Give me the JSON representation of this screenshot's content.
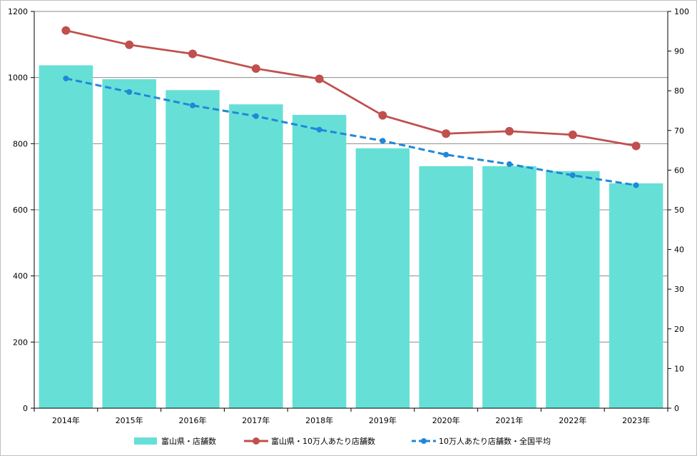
{
  "chart_data": {
    "type": "bar",
    "categories": [
      "2014年",
      "2015年",
      "2016年",
      "2017年",
      "2018年",
      "2019年",
      "2020年",
      "2021年",
      "2022年",
      "2023年"
    ],
    "y_left": {
      "range": [
        0,
        1200
      ],
      "ticks": [
        "0",
        "200",
        "400",
        "600",
        "800",
        "1000",
        "1200"
      ]
    },
    "y_right": {
      "range": [
        0,
        100
      ],
      "ticks": [
        "0",
        "10",
        "20",
        "30",
        "40",
        "50",
        "60",
        "70",
        "80",
        "90",
        "100"
      ]
    },
    "grid": true,
    "legend_position": "bottom",
    "series": [
      {
        "name": "富山県・店舗数",
        "type": "bar",
        "axis": "left",
        "color": "#66E0D6",
        "values": [
          1037,
          995,
          962,
          919,
          887,
          786,
          732,
          732,
          717,
          680
        ]
      },
      {
        "name": "富山県・10万人あたり店舗数",
        "type": "line",
        "axis": "right",
        "color": "#C0504D",
        "marker": "circle",
        "values": [
          95.2,
          91.6,
          89.3,
          85.6,
          83.0,
          73.8,
          69.2,
          69.8,
          68.9,
          66.1
        ]
      },
      {
        "name": "10万人あたり店舗数・全国平均",
        "type": "line",
        "axis": "right",
        "color": "#1F88D8",
        "line_style": "dashed",
        "marker": "circle",
        "values": [
          83.1,
          79.7,
          76.3,
          73.6,
          70.2,
          67.4,
          63.9,
          61.5,
          58.7,
          56.2
        ]
      }
    ]
  }
}
